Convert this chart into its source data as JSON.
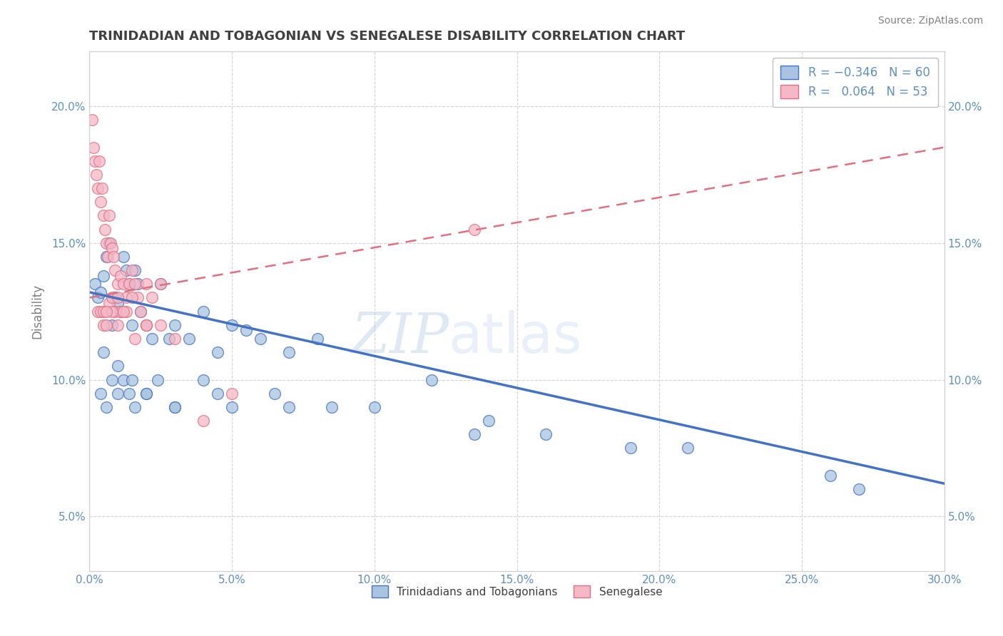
{
  "title": "TRINIDADIAN AND TOBAGONIAN VS SENEGALESE DISABILITY CORRELATION CHART",
  "source_text": "Source: ZipAtlas.com",
  "ylabel": "Disability",
  "xlim": [
    0.0,
    30.0
  ],
  "ylim": [
    3.0,
    22.0
  ],
  "x_ticks": [
    0.0,
    5.0,
    10.0,
    15.0,
    20.0,
    25.0,
    30.0
  ],
  "y_ticks": [
    5.0,
    10.0,
    15.0,
    20.0
  ],
  "bottom_legend": [
    "Trinidadians and Tobagonians",
    "Senegalese"
  ],
  "watermark": "ZIPatlas",
  "blue_scatter_x": [
    0.2,
    0.3,
    0.4,
    0.5,
    0.6,
    0.7,
    0.8,
    0.9,
    1.0,
    1.1,
    1.2,
    1.3,
    1.4,
    1.5,
    1.6,
    1.7,
    1.8,
    2.0,
    2.2,
    2.5,
    2.8,
    3.0,
    3.5,
    4.0,
    4.5,
    5.0,
    5.5,
    6.0,
    7.0,
    8.0,
    0.4,
    0.6,
    0.8,
    1.0,
    1.2,
    1.4,
    1.6,
    2.0,
    2.4,
    3.0,
    4.0,
    5.0,
    6.5,
    8.5,
    12.0,
    14.0,
    16.0,
    19.0,
    21.0,
    27.0,
    0.5,
    1.0,
    1.5,
    2.0,
    3.0,
    4.5,
    7.0,
    10.0,
    13.5,
    26.0
  ],
  "blue_scatter_y": [
    13.5,
    13.0,
    13.2,
    13.8,
    14.5,
    15.0,
    12.0,
    13.0,
    12.8,
    12.5,
    14.5,
    14.0,
    13.5,
    12.0,
    14.0,
    13.5,
    12.5,
    12.0,
    11.5,
    13.5,
    11.5,
    12.0,
    11.5,
    12.5,
    11.0,
    12.0,
    11.8,
    11.5,
    11.0,
    11.5,
    9.5,
    9.0,
    10.0,
    9.5,
    10.0,
    9.5,
    9.0,
    9.5,
    10.0,
    9.0,
    10.0,
    9.0,
    9.5,
    9.0,
    10.0,
    8.5,
    8.0,
    7.5,
    7.5,
    6.0,
    11.0,
    10.5,
    10.0,
    9.5,
    9.0,
    9.5,
    9.0,
    9.0,
    8.0,
    6.5
  ],
  "pink_scatter_x": [
    0.1,
    0.15,
    0.2,
    0.25,
    0.3,
    0.35,
    0.4,
    0.45,
    0.5,
    0.55,
    0.6,
    0.65,
    0.7,
    0.75,
    0.8,
    0.85,
    0.9,
    1.0,
    1.1,
    1.2,
    1.3,
    1.4,
    1.5,
    1.6,
    1.7,
    1.8,
    2.0,
    2.2,
    2.5,
    0.3,
    0.5,
    0.7,
    0.9,
    1.1,
    0.4,
    0.6,
    0.8,
    1.0,
    1.3,
    0.5,
    0.8,
    1.2,
    1.6,
    2.0,
    2.5,
    3.0,
    4.0,
    5.0,
    0.6,
    1.0,
    1.5,
    2.0,
    13.5
  ],
  "pink_scatter_y": [
    19.5,
    18.5,
    18.0,
    17.5,
    17.0,
    18.0,
    16.5,
    17.0,
    16.0,
    15.5,
    15.0,
    14.5,
    16.0,
    15.0,
    14.8,
    14.5,
    14.0,
    13.5,
    13.8,
    13.5,
    13.0,
    13.5,
    14.0,
    13.5,
    13.0,
    12.5,
    13.5,
    13.0,
    13.5,
    12.5,
    12.0,
    12.8,
    12.5,
    12.5,
    12.5,
    12.0,
    13.0,
    13.0,
    12.5,
    12.5,
    12.5,
    12.5,
    11.5,
    12.0,
    12.0,
    11.5,
    8.5,
    9.5,
    12.5,
    12.0,
    13.0,
    12.0,
    15.5
  ],
  "blue_color": "#a8c4e0",
  "pink_color": "#f4b8c8",
  "blue_line_color": "#4472c4",
  "pink_line_color": "#e07080",
  "grid_color": "#d0d0d0",
  "background_color": "#ffffff",
  "title_color": "#404040",
  "axis_label_color": "#6090c0",
  "ylabel_color": "#808080",
  "blue_trend_start_y": 13.2,
  "blue_trend_end_y": 6.2,
  "pink_trend_start_y": 13.0,
  "pink_trend_end_y": 18.5
}
